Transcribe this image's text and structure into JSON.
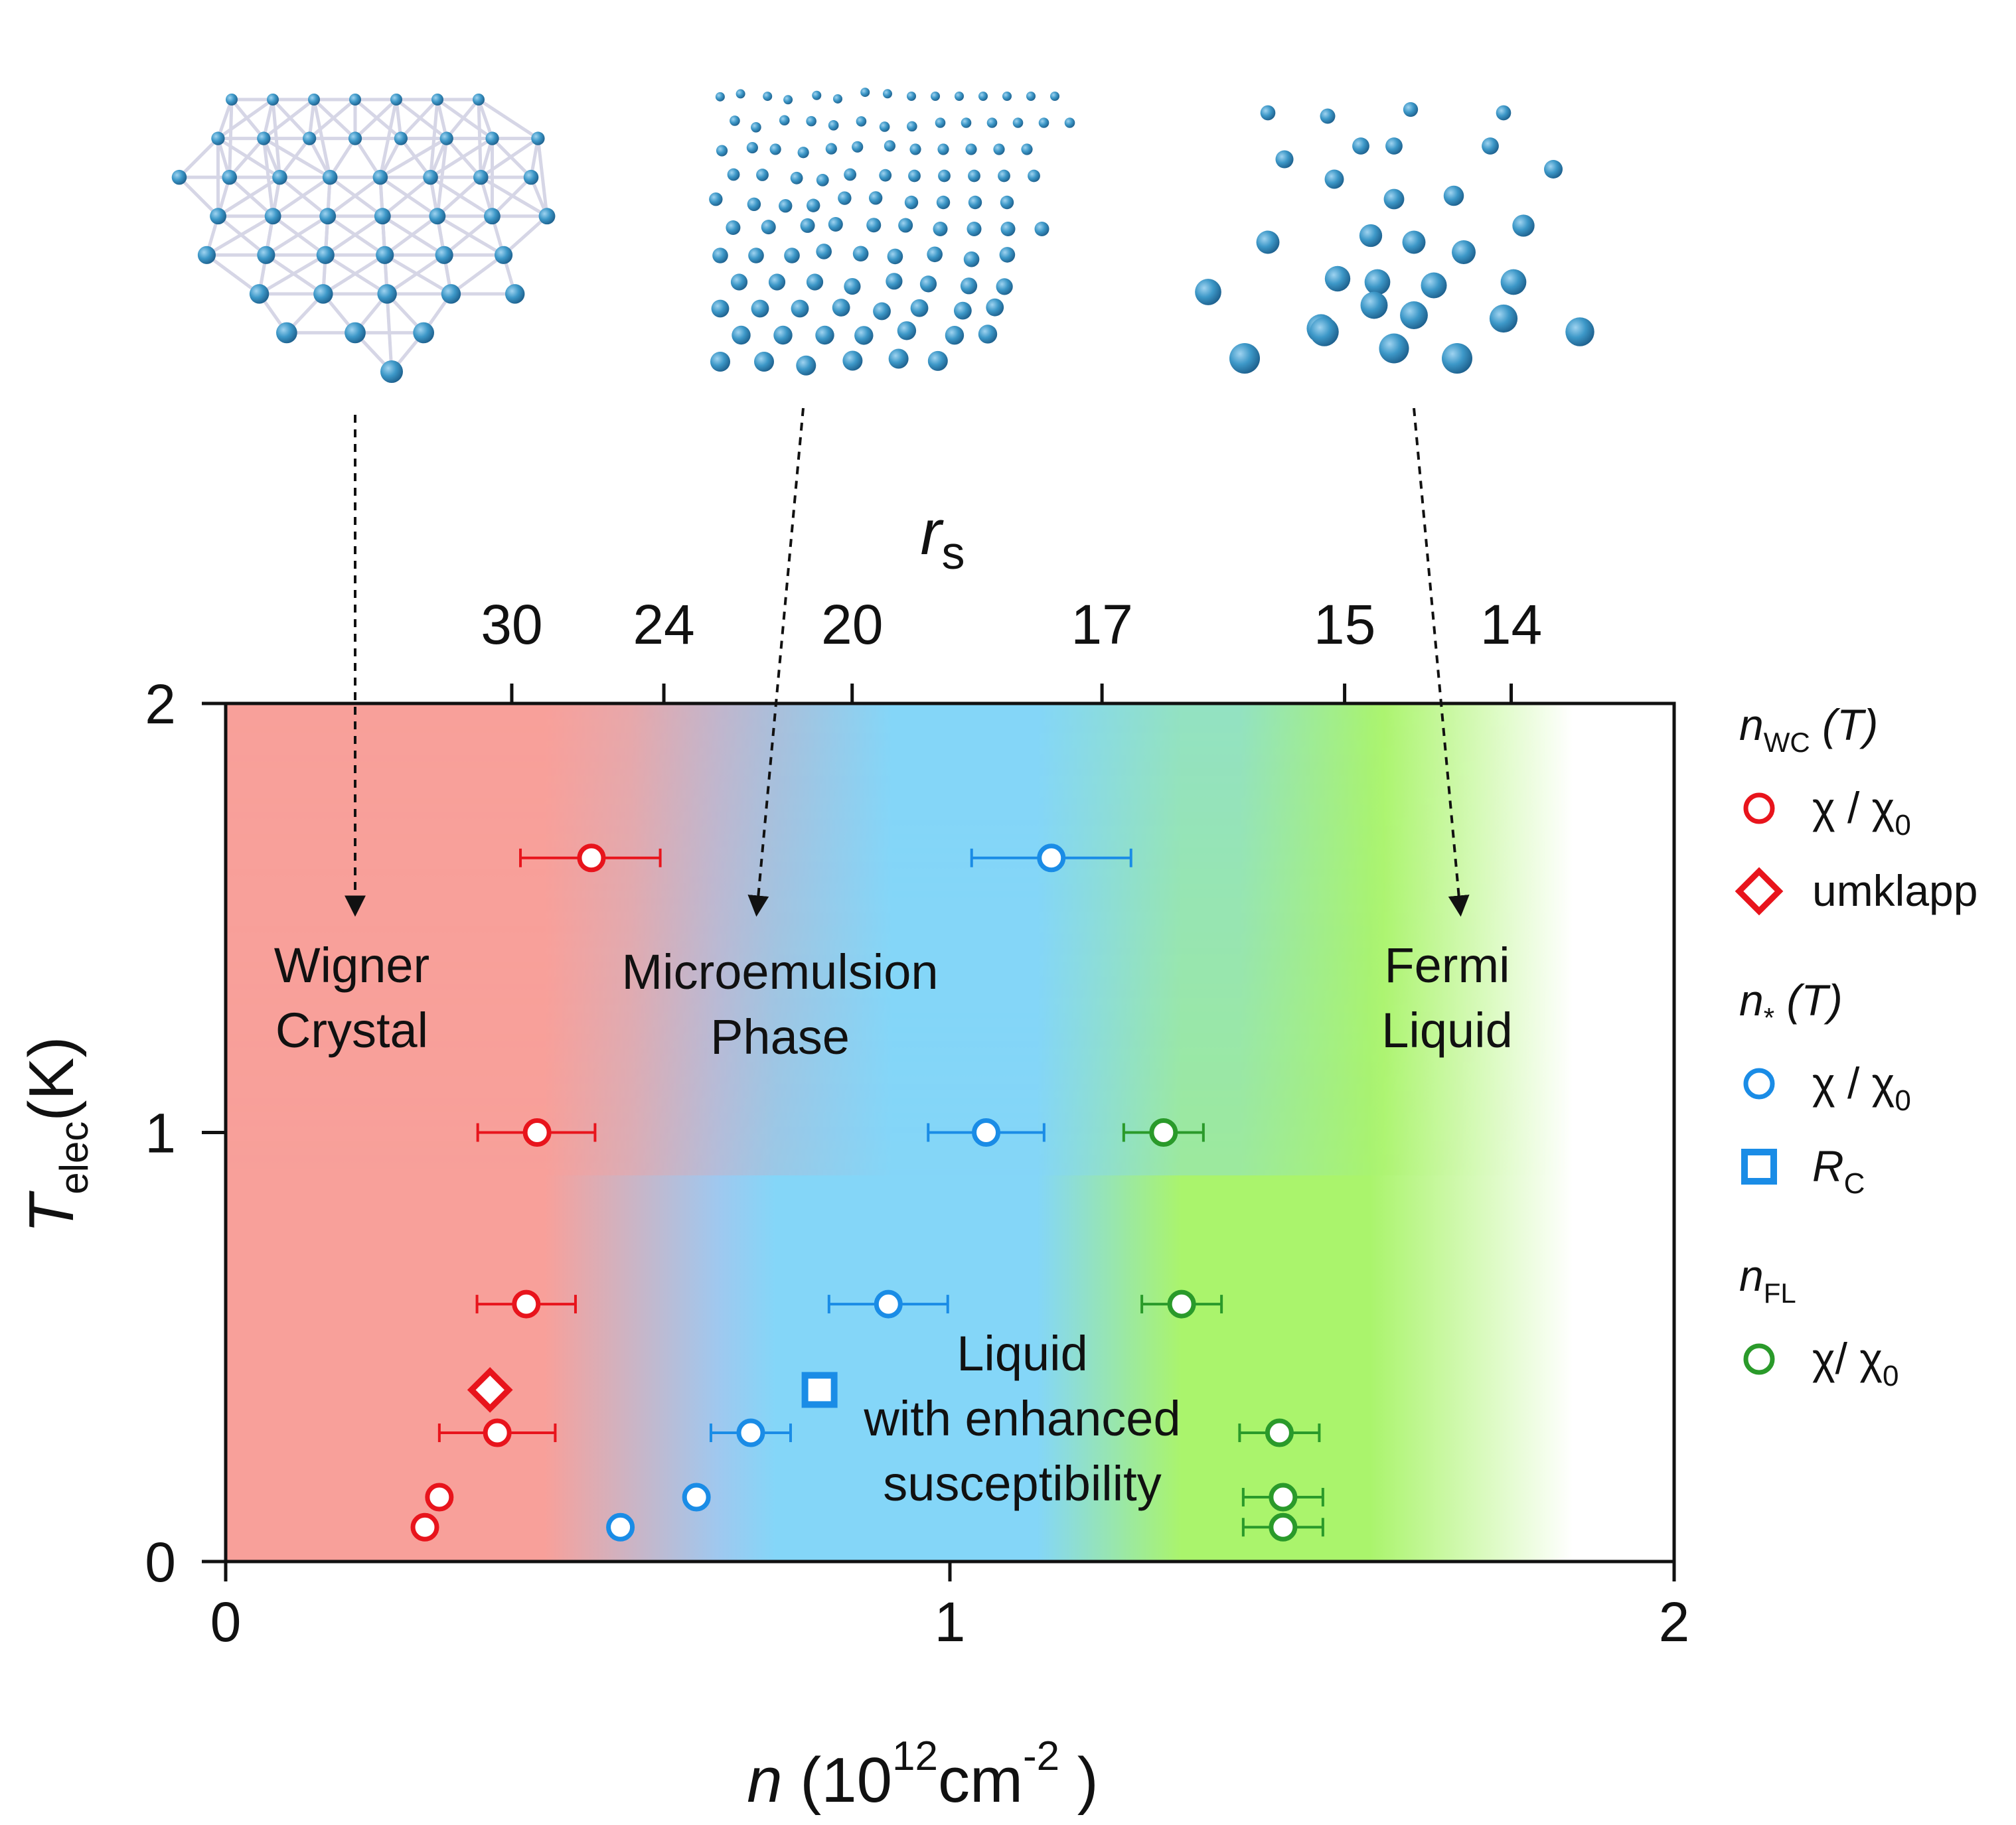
{
  "chart_data": {
    "type": "scatter",
    "xlabel": "n",
    "xlabel_unit": "(10",
    "xlabel_exp1": "12",
    "xlabel_unit2": "cm",
    "xlabel_exp2": "-2",
    "xlabel_close": ")",
    "ylabel": "T",
    "ylabel_sub": "elec",
    "ylabel_unit": "(K)",
    "xlim": [
      0,
      2
    ],
    "ylim": [
      0,
      2
    ],
    "x_ticks": [
      "0",
      "1",
      "2"
    ],
    "y_ticks": [
      "0",
      "1",
      "2"
    ],
    "top_axis": {
      "label": "r",
      "label_sub": "s",
      "ticks": [
        {
          "label": "30",
          "n": 0.395
        },
        {
          "label": "24",
          "n": 0.605
        },
        {
          "label": "20",
          "n": 0.865
        },
        {
          "label": "17",
          "n": 1.21
        },
        {
          "label": "15",
          "n": 1.545
        },
        {
          "label": "14",
          "n": 1.775
        }
      ]
    },
    "regions": [
      {
        "line1": "Wigner",
        "line2": "Crystal",
        "color": "#f8a09a"
      },
      {
        "line1": "Microemulsion",
        "line2": "Phase",
        "color": "#84d6f8"
      },
      {
        "line1": "Liquid",
        "line2": "with enhanced",
        "line3": "susceptibility",
        "color": "#aaf46c"
      },
      {
        "line1": "Fermi",
        "line2": "Liquid",
        "color": "#ffffff"
      }
    ],
    "illustrations": [
      {
        "name": "wigner-crystal-lattice"
      },
      {
        "name": "microemulsion-lattice"
      },
      {
        "name": "fermi-liquid-particles"
      }
    ],
    "series": [
      {
        "name": "n_WC (T) χ/χ0",
        "color": "#e8141c",
        "marker": "circle",
        "points": [
          {
            "x": 0.505,
            "y": 1.64,
            "xerr_lo": 0.098,
            "xerr_hi": 0.095
          },
          {
            "x": 0.43,
            "y": 1.0,
            "xerr_lo": 0.082,
            "xerr_hi": 0.08
          },
          {
            "x": 0.415,
            "y": 0.6,
            "xerr_lo": 0.068,
            "xerr_hi": 0.068
          },
          {
            "x": 0.375,
            "y": 0.3,
            "xerr_lo": 0.08,
            "xerr_hi": 0.08
          },
          {
            "x": 0.295,
            "y": 0.15
          },
          {
            "x": 0.275,
            "y": 0.08
          }
        ]
      },
      {
        "name": "n_WC (T) umklapp",
        "color": "#e8141c",
        "marker": "diamond",
        "points": [
          {
            "x": 0.365,
            "y": 0.4
          }
        ]
      },
      {
        "name": "n* (T) χ/χ0",
        "color": "#1a8ce6",
        "marker": "circle",
        "points": [
          {
            "x": 1.14,
            "y": 1.64,
            "xerr_lo": 0.11,
            "xerr_hi": 0.11
          },
          {
            "x": 1.05,
            "y": 1.0,
            "xerr_lo": 0.08,
            "xerr_hi": 0.08
          },
          {
            "x": 0.915,
            "y": 0.6,
            "xerr_lo": 0.082,
            "xerr_hi": 0.082
          },
          {
            "x": 0.725,
            "y": 0.3,
            "xerr_lo": 0.055,
            "xerr_hi": 0.055
          },
          {
            "x": 0.65,
            "y": 0.15
          },
          {
            "x": 0.545,
            "y": 0.08
          }
        ]
      },
      {
        "name": "n* (T) R_C",
        "color": "#1a8ce6",
        "marker": "square",
        "points": [
          {
            "x": 0.82,
            "y": 0.4
          }
        ]
      },
      {
        "name": "n_FL χ/χ0",
        "color": "#2a9a2a",
        "marker": "circle",
        "points": [
          {
            "x": 1.295,
            "y": 1.0,
            "xerr_lo": 0.055,
            "xerr_hi": 0.055
          },
          {
            "x": 1.32,
            "y": 0.6,
            "xerr_lo": 0.055,
            "xerr_hi": 0.055
          },
          {
            "x": 1.455,
            "y": 0.3,
            "xerr_lo": 0.055,
            "xerr_hi": 0.055
          },
          {
            "x": 1.46,
            "y": 0.15,
            "xerr_lo": 0.055,
            "xerr_hi": 0.055
          },
          {
            "x": 1.46,
            "y": 0.08,
            "xerr_lo": 0.055,
            "xerr_hi": 0.055
          }
        ]
      }
    ],
    "legend": {
      "placement": "right",
      "groups": [
        {
          "title": "n",
          "title_sub": "WC",
          "title_suffix": "(T)",
          "items": [
            {
              "marker": "circle",
              "color": "#e8141c",
              "label": "χ / χ",
              "label_sub": "0"
            },
            {
              "marker": "diamond",
              "color": "#e8141c",
              "label": "umklapp",
              "label_sub": ""
            }
          ]
        },
        {
          "title": "n",
          "title_sub": "*",
          "title_suffix": "(T)",
          "items": [
            {
              "marker": "circle",
              "color": "#1a8ce6",
              "label": "χ / χ",
              "label_sub": "0"
            },
            {
              "marker": "square",
              "color": "#1a8ce6",
              "label": "R",
              "label_sub": "C"
            }
          ]
        },
        {
          "title": "n",
          "title_sub": "FL",
          "title_suffix": "",
          "items": [
            {
              "marker": "circle",
              "color": "#2a9a2a",
              "label": "χ/ χ",
              "label_sub": "0"
            }
          ]
        }
      ]
    }
  }
}
